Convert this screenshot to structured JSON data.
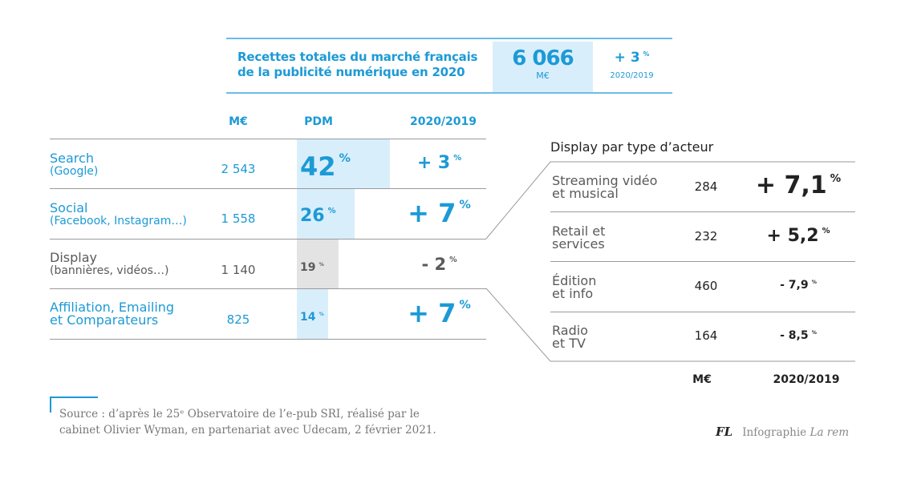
{
  "header": {
    "title_line1": "Recettes totales du marché français",
    "title_line2": "de la publicité numérique en 2020",
    "total_value": "6 066",
    "total_unit": "M€",
    "growth": "+ 3",
    "growth_unit": "%",
    "growth_period": "2020/2019"
  },
  "main_table": {
    "columns": [
      "M€",
      "PDM",
      "2020/2019"
    ],
    "rows": [
      {
        "label": "Search",
        "sublabel": "(Google)",
        "value": "2 543",
        "share": "42",
        "share_pct": 42,
        "growth": "+ 3",
        "highlight": "blue"
      },
      {
        "label": "Social",
        "sublabel": "(Facebook, Instagram…)",
        "value": "1 558",
        "share": "26",
        "share_pct": 26,
        "growth": "+ 7",
        "highlight": "blue"
      },
      {
        "label": "Display",
        "sublabel": "(bannières, vidéos…)",
        "value": "1 140",
        "share": "19",
        "share_pct": 19,
        "growth": "- 2",
        "highlight": "grey"
      },
      {
        "label": "Affiliation, Emailing",
        "sublabel": "et Comparateurs",
        "value": "825",
        "share": "14",
        "share_pct": 14,
        "growth": "+ 7",
        "highlight": "blue"
      }
    ],
    "pct_symbol": "%"
  },
  "display_table": {
    "title": "Display par type d’acteur",
    "rows": [
      {
        "label1": "Streaming vidéo",
        "label2": "et musical",
        "value": "284",
        "growth": "+ 7,1"
      },
      {
        "label1": "Retail et",
        "label2": "services",
        "value": "232",
        "growth": "+ 5,2"
      },
      {
        "label1": "Édition",
        "label2": "et info",
        "value": "460",
        "growth": "- 7,9"
      },
      {
        "label1": "Radio",
        "label2": "et TV",
        "value": "164",
        "growth": "- 8,5"
      }
    ],
    "footer_columns": [
      "M€",
      "2020/2019"
    ],
    "pct_symbol": "%"
  },
  "footer": {
    "source_line1": "Source : d’après le 25ᵉ Observatoire de l’e-pub SRI, réalisé par le",
    "source_line2": "cabinet Olivier Wyman, en partenariat avec Udecam, 2 février 2021.",
    "credit_logo": "FL",
    "credit_text": "Infographie",
    "credit_magazine": "La rem"
  },
  "colors": {
    "accent_blue": "#1c9ad6",
    "bar_blue": "#d9eefb",
    "bar_grey": "#e3e3e3",
    "text_grey": "#5a5a5a"
  }
}
